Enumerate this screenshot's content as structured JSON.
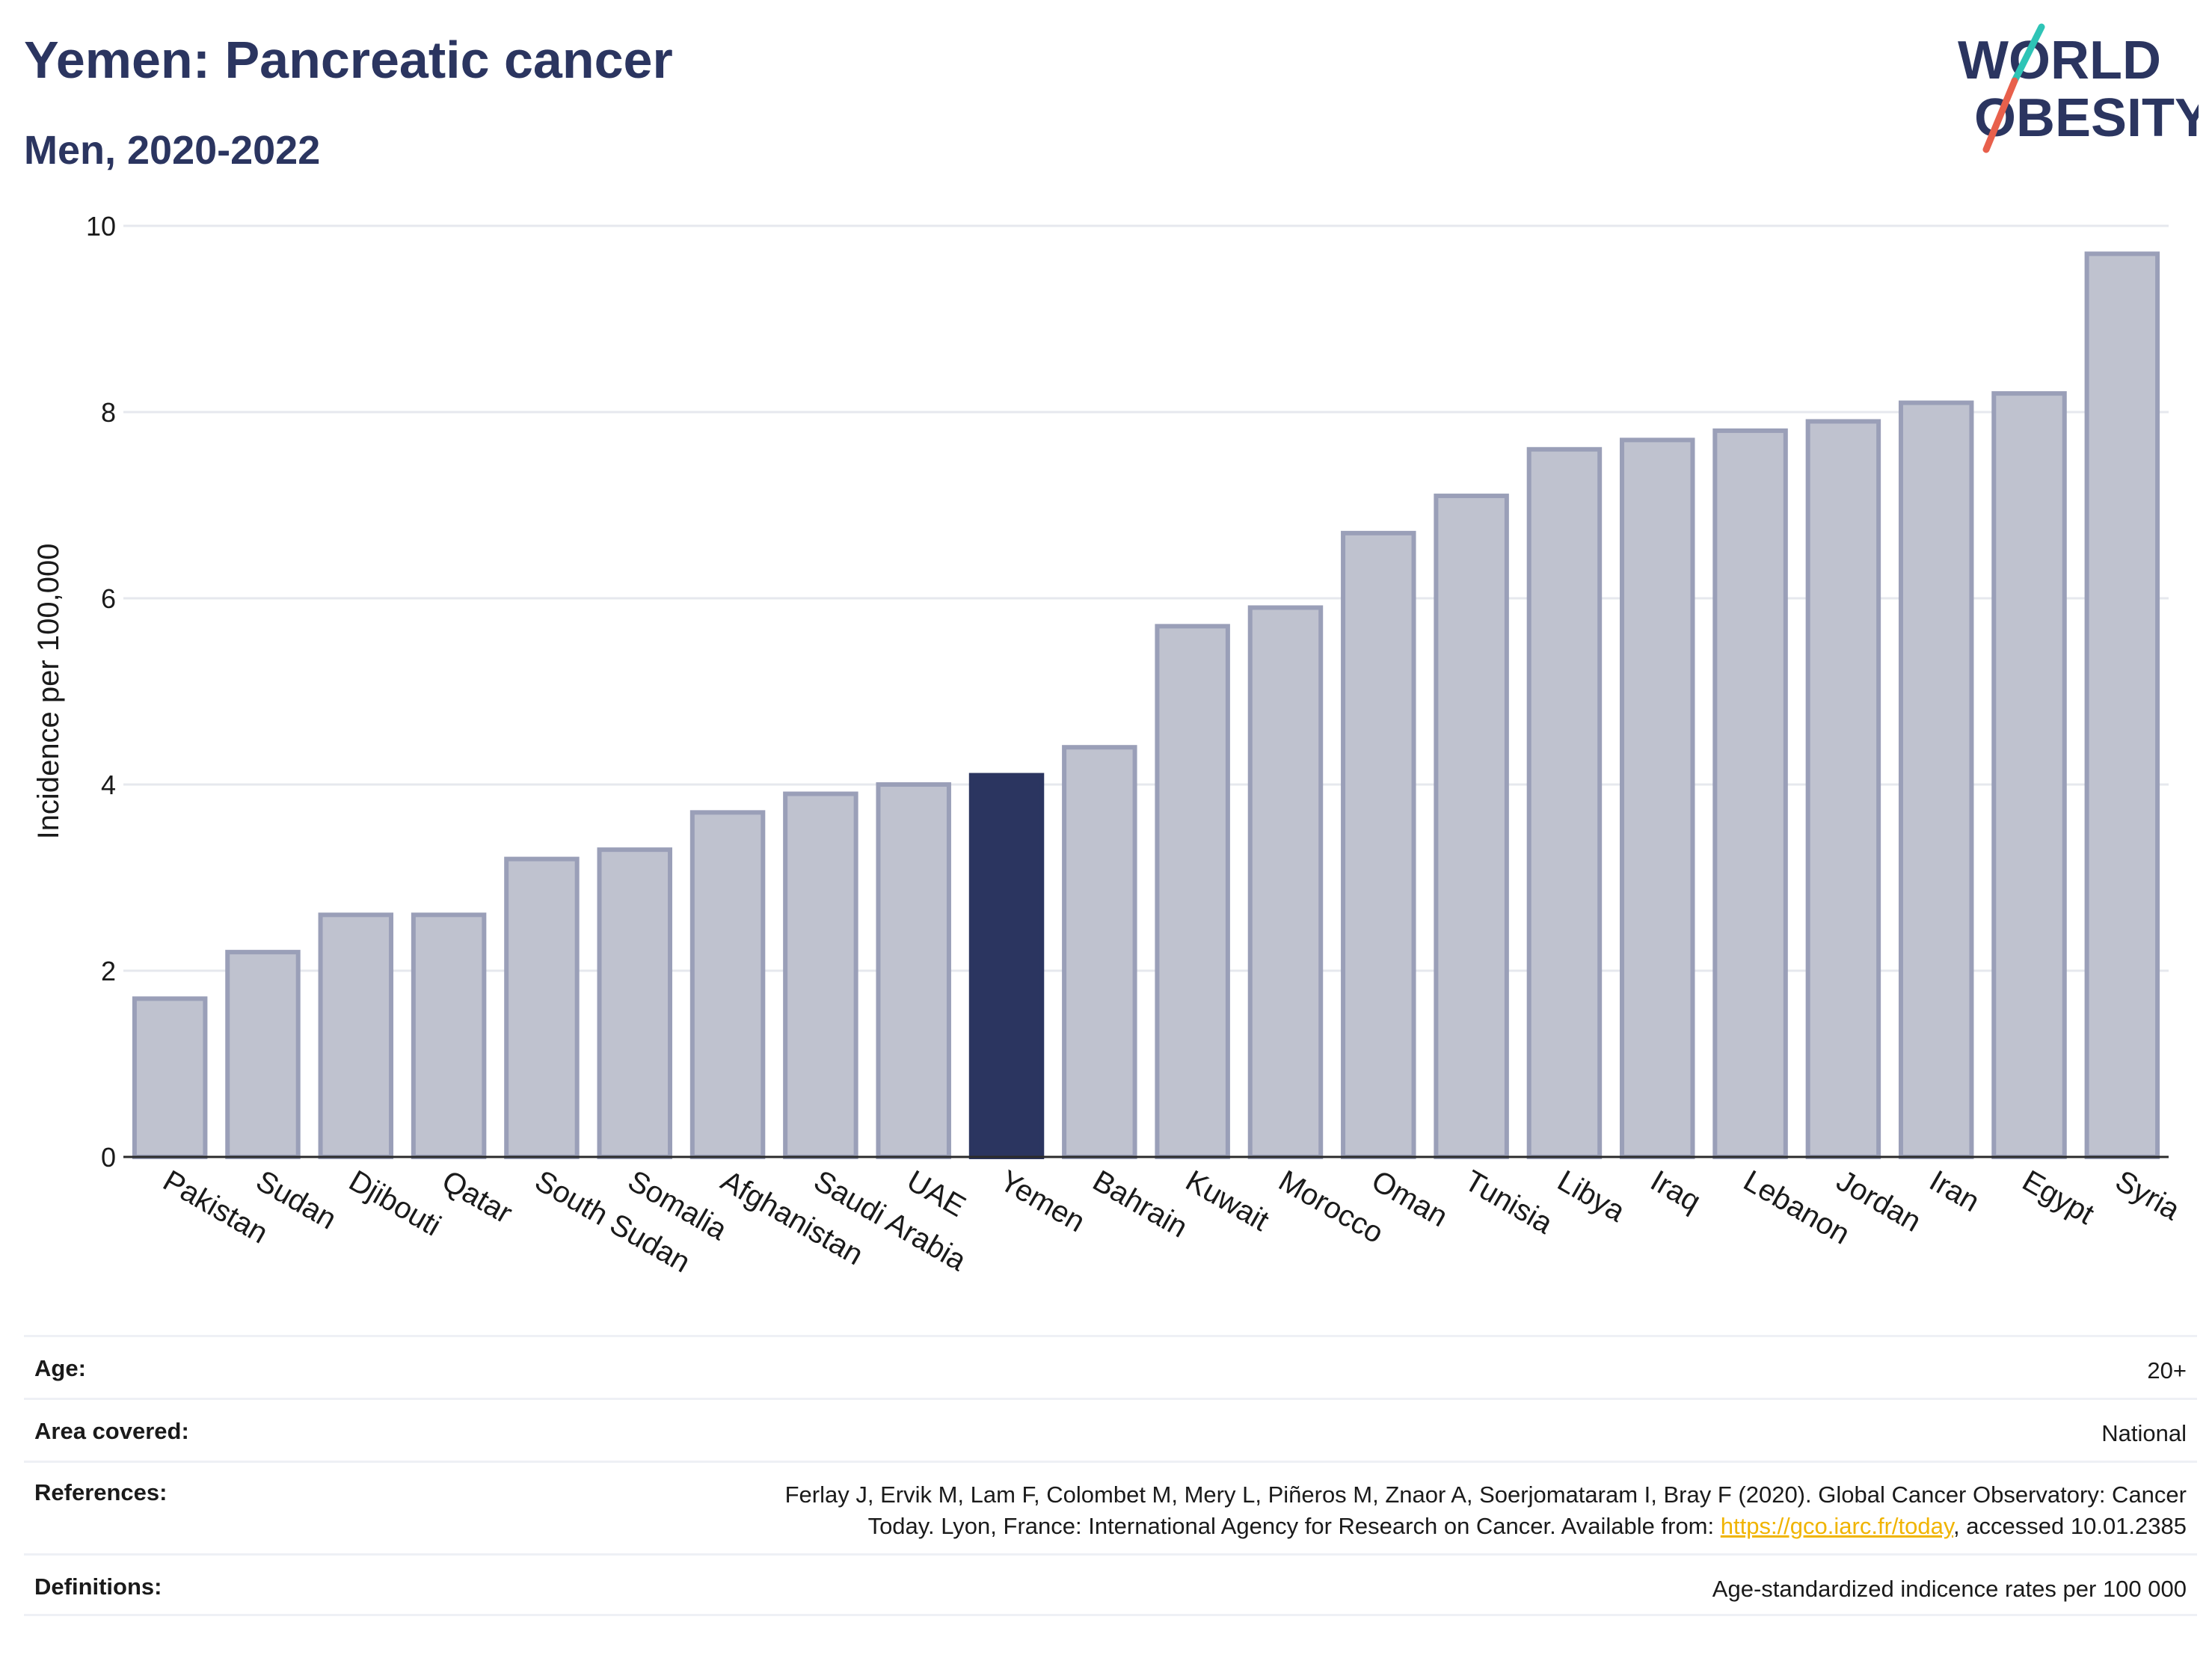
{
  "header": {
    "title": "Yemen: Pancreatic cancer",
    "subtitle": "Men, 2020-2022"
  },
  "logo": {
    "line1": "WORLD",
    "line2": "OBESITY",
    "slash_color_top": "#2ec4b6",
    "slash_color_bottom": "#e8604c"
  },
  "colors": {
    "highlight": "#2b3560",
    "bar_fill": "#bfc2cf",
    "bar_stroke": "#9a9fb8",
    "text_dark": "#2b3560"
  },
  "chart_data": {
    "type": "bar",
    "ylabel": "Incidence per 100,000",
    "ylim": [
      0,
      10
    ],
    "yticks": [
      0,
      2,
      4,
      6,
      8,
      10
    ],
    "grid": true,
    "highlight": "Yemen",
    "categories": [
      "Pakistan",
      "Sudan",
      "Djibouti",
      "Qatar",
      "South Sudan",
      "Somalia",
      "Afghanistan",
      "Saudi Arabia",
      "UAE",
      "Yemen",
      "Bahrain",
      "Kuwait",
      "Morocco",
      "Oman",
      "Tunisia",
      "Libya",
      "Iraq",
      "Lebanon",
      "Jordan",
      "Iran",
      "Egypt",
      "Syria"
    ],
    "values": [
      1.7,
      2.2,
      2.6,
      2.6,
      3.2,
      3.3,
      3.7,
      3.9,
      4.0,
      4.1,
      4.4,
      5.7,
      5.9,
      6.7,
      7.1,
      7.6,
      7.7,
      7.8,
      7.9,
      8.1,
      8.2,
      9.7
    ]
  },
  "info": {
    "age_label": "Age:",
    "age_value": "20+",
    "area_label": "Area covered:",
    "area_value": "National",
    "ref_label": "References:",
    "ref_line1": "Ferlay J, Ervik M, Lam F, Colombet M, Mery L, Piñeros M, Znaor A, Soerjomataram I, Bray F (2020). Global Cancer Observatory: Cancer",
    "ref_line2_pre": "Today. Lyon, France: International Agency for Research on Cancer. Available from: ",
    "ref_link": "https://gco.iarc.fr/today",
    "ref_line2_post": ", accessed 10.01.2385",
    "def_label": "Definitions:",
    "def_value": "Age-standardized indicence rates per 100 000"
  }
}
